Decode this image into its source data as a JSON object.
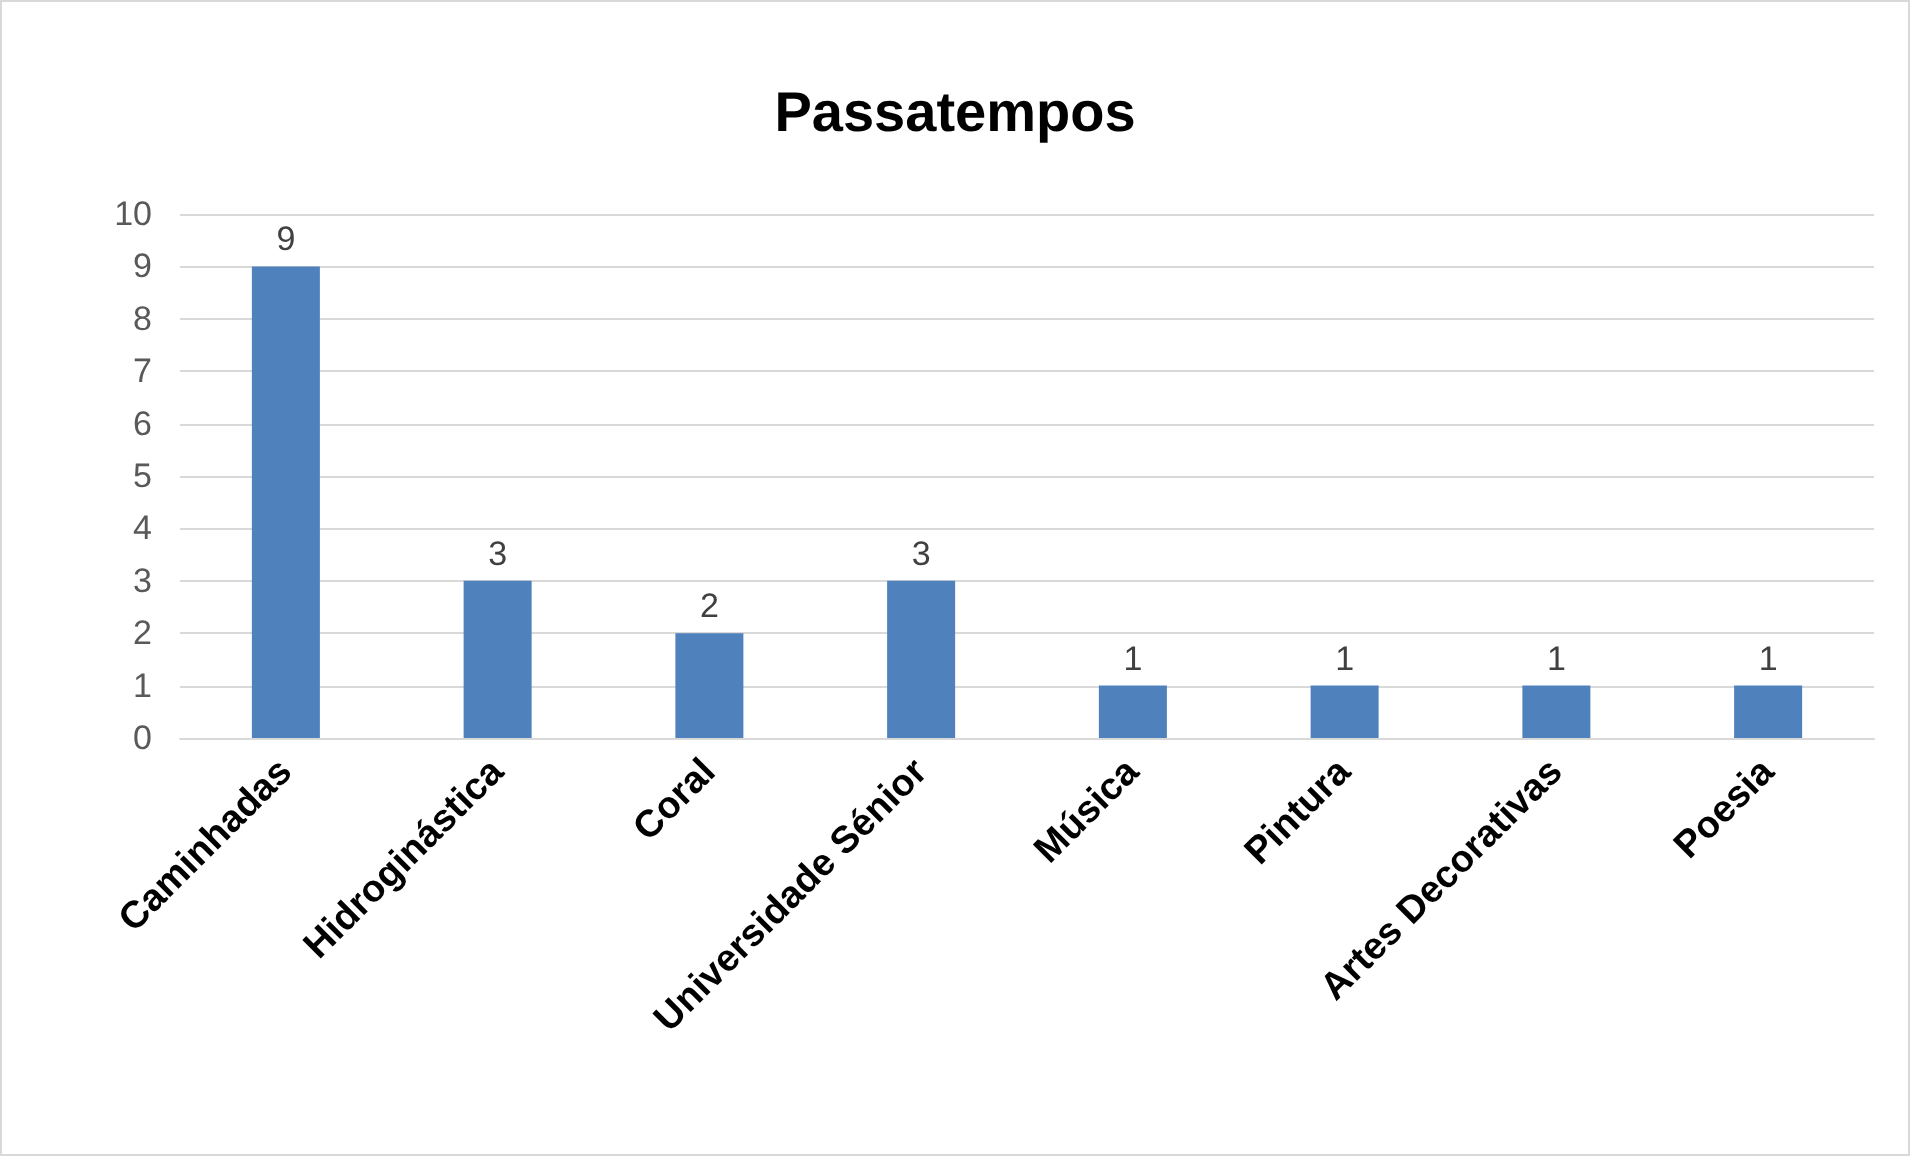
{
  "chart_data": {
    "type": "bar",
    "title": "Passatempos",
    "categories": [
      "Caminhadas",
      "Hidroginástica",
      "Coral",
      "Universidade Sénior",
      "Música",
      "Pintura",
      "Artes Decorativas",
      "Poesia"
    ],
    "values": [
      9,
      3,
      2,
      3,
      1,
      1,
      1,
      1
    ],
    "color": "#4f81bd",
    "ylim": [
      0,
      10
    ],
    "yticks": [
      0,
      1,
      2,
      3,
      4,
      5,
      6,
      7,
      8,
      9,
      10
    ],
    "grid": "y",
    "data_labels": true
  }
}
